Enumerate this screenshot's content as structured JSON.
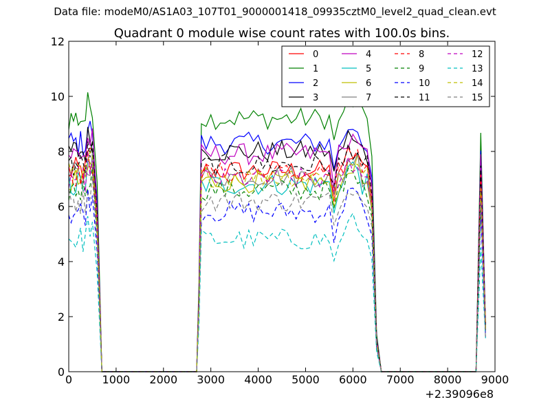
{
  "header": {
    "suptitle": "Data file: modeM0/AS1A03_107T01_9000001418_09935cztM0_level2_quad_clean.evt"
  },
  "chart_data": {
    "type": "line",
    "title": "Quadrant 0 module wise count rates with 100.0s bins.",
    "xlabel": "",
    "ylabel": "",
    "x_offset_label": "+2.39096e8",
    "xlim": [
      0,
      9000
    ],
    "ylim": [
      0,
      12
    ],
    "x_ticks": [
      0,
      1000,
      2000,
      3000,
      4000,
      5000,
      6000,
      7000,
      8000,
      9000
    ],
    "y_ticks": [
      0,
      2,
      4,
      6,
      8,
      10,
      12
    ],
    "grid": false,
    "legend": {
      "placement": "top-right",
      "columns": 4
    },
    "segments": [
      {
        "x_start": 0,
        "x_end": 500
      },
      {
        "x_start": 2800,
        "x_end": 6300
      },
      {
        "x_start": 8700,
        "x_end": 8700
      }
    ],
    "off_plateau": {
      "x_end_of_first": 700,
      "x_gap_start": 800,
      "x_gap_end": 2700,
      "x_resume": 6600,
      "x_drop_end": 8600,
      "x_last": 8800
    },
    "series": [
      {
        "name": "0",
        "color": "#ff0000",
        "dash": "solid",
        "level": 7.3
      },
      {
        "name": "1",
        "color": "#008000",
        "dash": "solid",
        "level": 9.2
      },
      {
        "name": "2",
        "color": "#0000ff",
        "dash": "solid",
        "level": 8.3
      },
      {
        "name": "3",
        "color": "#000000",
        "dash": "solid",
        "level": 8.0
      },
      {
        "name": "4",
        "color": "#bf00bf",
        "dash": "solid",
        "level": 7.9
      },
      {
        "name": "5",
        "color": "#00bfbf",
        "dash": "solid",
        "level": 6.8
      },
      {
        "name": "6",
        "color": "#bfbf00",
        "dash": "solid",
        "level": 6.9
      },
      {
        "name": "7",
        "color": "#808080",
        "dash": "solid",
        "level": 7.1
      },
      {
        "name": "8",
        "color": "#ff0000",
        "dash": "dashed",
        "level": 7.2
      },
      {
        "name": "9",
        "color": "#008000",
        "dash": "dashed",
        "level": 6.6
      },
      {
        "name": "10",
        "color": "#0000ff",
        "dash": "dashed",
        "level": 5.8
      },
      {
        "name": "11",
        "color": "#000000",
        "dash": "dashed",
        "level": 7.5
      },
      {
        "name": "12",
        "color": "#bf00bf",
        "dash": "dashed",
        "level": 7.0
      },
      {
        "name": "13",
        "color": "#00bfbf",
        "dash": "dashed",
        "level": 4.8
      },
      {
        "name": "14",
        "color": "#bfbf00",
        "dash": "dashed",
        "level": 7.1
      },
      {
        "name": "15",
        "color": "#808080",
        "dash": "dashed",
        "level": 6.2
      }
    ]
  }
}
